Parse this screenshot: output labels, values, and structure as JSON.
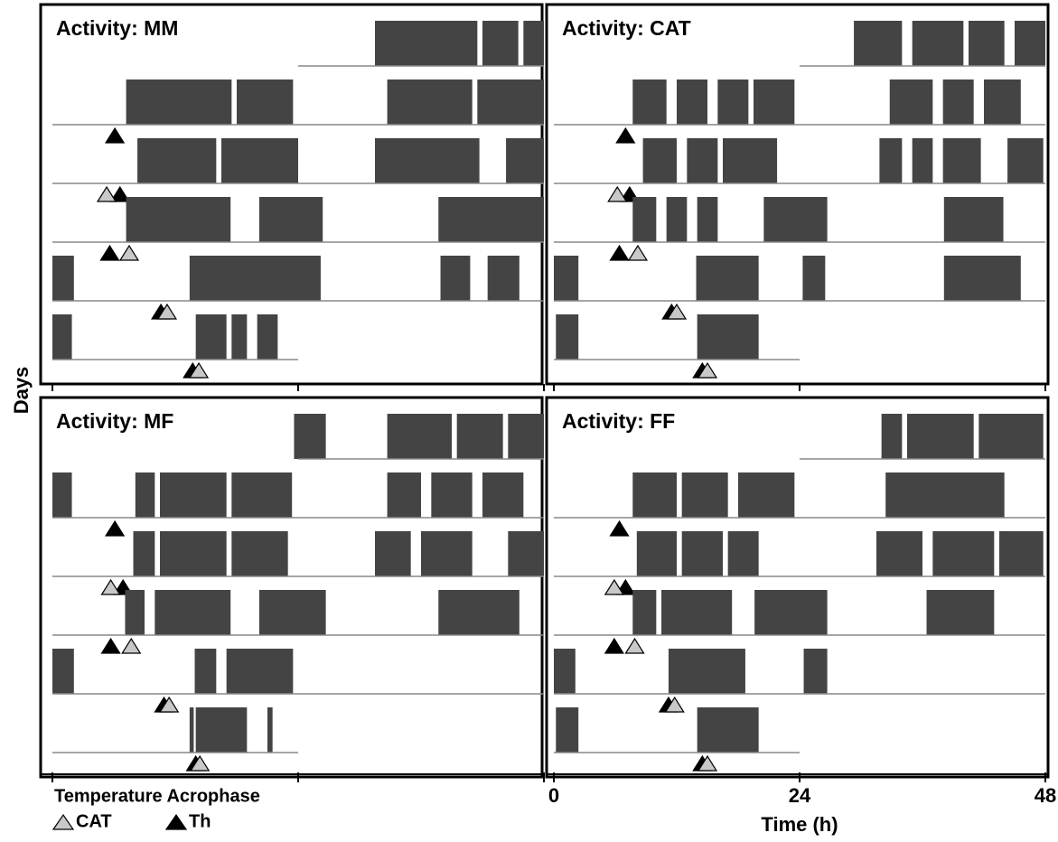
{
  "chart_data": {
    "type": "actogram",
    "x_label": "Time (h)",
    "y_label": "Days",
    "xlim": [
      0,
      48
    ],
    "xticks": [
      0,
      24,
      48
    ],
    "bar_color": "#444444",
    "legend": {
      "title": "Temperature Acrophase",
      "entries": [
        {
          "name": "CAT",
          "color": "#c8c8c8"
        },
        {
          "name": "Th",
          "color": "#000000"
        }
      ]
    },
    "panels": [
      {
        "title": "Activity: MM",
        "days": [
          {
            "span": [
              24,
              48
            ],
            "bouts": [
              [
                31.5,
                41.5
              ],
              [
                42,
                45.5
              ],
              [
                46,
                48
              ]
            ]
          },
          {
            "span": [
              0,
              48
            ],
            "bouts": [
              [
                7.2,
                17.5
              ],
              [
                18,
                23.5
              ],
              [
                32.7,
                41
              ],
              [
                41.5,
                48
              ]
            ],
            "acrophase": {
              "Th": 6.1
            }
          },
          {
            "span": [
              0,
              48
            ],
            "bouts": [
              [
                8.3,
                16
              ],
              [
                16.5,
                24
              ],
              [
                31.5,
                41.7
              ],
              [
                44.3,
                48
              ]
            ],
            "acrophase": {
              "CAT": 5.3,
              "Th": 6.6
            }
          },
          {
            "span": [
              0,
              48
            ],
            "bouts": [
              [
                7.2,
                17.4
              ],
              [
                20.2,
                26.4
              ],
              [
                37.7,
                48
              ]
            ],
            "acrophase": {
              "CAT": 7.5,
              "Th": 5.6
            }
          },
          {
            "span": [
              0,
              48
            ],
            "bouts": [
              [
                0,
                2.1
              ],
              [
                13.4,
                26.2
              ],
              [
                37.9,
                40.8
              ],
              [
                42.5,
                45.6
              ]
            ],
            "acrophase": {
              "CAT": 11.2,
              "Th": 10.6
            }
          },
          {
            "span": [
              0,
              24
            ],
            "bouts": [
              [
                0,
                1.9
              ],
              [
                14,
                17
              ],
              [
                17.5,
                19
              ],
              [
                20,
                22
              ]
            ],
            "acrophase": {
              "CAT": 14.3,
              "Th": 13.7
            }
          }
        ]
      },
      {
        "title": "Activity: CAT",
        "days": [
          {
            "span": [
              24,
              48
            ],
            "bouts": [
              [
                29.3,
                34
              ],
              [
                35,
                40
              ],
              [
                40.5,
                44
              ],
              [
                45,
                48
              ]
            ]
          },
          {
            "span": [
              0,
              48
            ],
            "bouts": [
              [
                7.7,
                11
              ],
              [
                12,
                15
              ],
              [
                16,
                19
              ],
              [
                19.5,
                23.5
              ],
              [
                32.8,
                37
              ],
              [
                38,
                41
              ],
              [
                42,
                45.6
              ]
            ],
            "acrophase": {
              "Th": 7.0
            }
          },
          {
            "span": [
              0,
              48
            ],
            "bouts": [
              [
                8.7,
                12
              ],
              [
                13,
                16
              ],
              [
                16.5,
                21.8
              ],
              [
                31.8,
                34
              ],
              [
                35,
                37
              ],
              [
                38,
                41.7
              ],
              [
                44.3,
                47.8
              ]
            ],
            "acrophase": {
              "CAT": 6.2,
              "Th": 7.4
            }
          },
          {
            "span": [
              0,
              48
            ],
            "bouts": [
              [
                7.7,
                10
              ],
              [
                11,
                13
              ],
              [
                14,
                16
              ],
              [
                20.5,
                26.7
              ],
              [
                38.1,
                43.9
              ]
            ],
            "acrophase": {
              "CAT": 8.2,
              "Th": 6.4
            }
          },
          {
            "span": [
              0,
              48
            ],
            "bouts": [
              [
                0,
                2.4
              ],
              [
                13.9,
                20
              ],
              [
                24.3,
                26.5
              ],
              [
                38.1,
                45.6
              ]
            ],
            "acrophase": {
              "CAT": 12,
              "Th": 11.5
            }
          },
          {
            "span": [
              0,
              24
            ],
            "bouts": [
              [
                0.2,
                2.4
              ],
              [
                14,
                20
              ]
            ],
            "acrophase": {
              "CAT": 15,
              "Th": 14.5
            }
          }
        ]
      },
      {
        "title": "Activity: MF",
        "days": [
          {
            "span": [
              24,
              48
            ],
            "bouts": [
              [
                23.6,
                26.7
              ],
              [
                32.7,
                39
              ],
              [
                39.5,
                44
              ],
              [
                44.5,
                48
              ]
            ]
          },
          {
            "span": [
              0,
              48
            ],
            "bouts": [
              [
                0,
                1.9
              ],
              [
                8.1,
                10
              ],
              [
                10.5,
                17
              ],
              [
                17.5,
                23.4
              ],
              [
                32.7,
                36
              ],
              [
                37,
                41
              ],
              [
                42,
                46
              ]
            ],
            "acrophase": {
              "Th": 6.1
            }
          },
          {
            "span": [
              0,
              48
            ],
            "bouts": [
              [
                7.9,
                10
              ],
              [
                10.5,
                17
              ],
              [
                17.5,
                23
              ],
              [
                31.5,
                35
              ],
              [
                36,
                41
              ],
              [
                44.5,
                48
              ]
            ],
            "acrophase": {
              "CAT": 5.7,
              "Th": 6.9
            }
          },
          {
            "span": [
              0,
              48
            ],
            "bouts": [
              [
                7.1,
                9
              ],
              [
                10,
                17.4
              ],
              [
                20.2,
                26.7
              ],
              [
                37.7,
                45.6
              ]
            ],
            "acrophase": {
              "CAT": 7.7,
              "Th": 5.7
            }
          },
          {
            "span": [
              0,
              48
            ],
            "bouts": [
              [
                0,
                2.1
              ],
              [
                13.9,
                16
              ],
              [
                17,
                23.5
              ]
            ],
            "acrophase": {
              "CAT": 11.4,
              "Th": 10.9
            }
          },
          {
            "span": [
              0,
              24
            ],
            "bouts": [
              [
                13.4,
                13.8
              ],
              [
                14,
                19
              ],
              [
                21,
                21.5
              ]
            ],
            "acrophase": {
              "CAT": 14.4,
              "Th": 14
            }
          }
        ]
      },
      {
        "title": "Activity: FF",
        "days": [
          {
            "span": [
              24,
              48
            ],
            "bouts": [
              [
                32,
                34
              ],
              [
                34.5,
                41
              ],
              [
                41.5,
                47.8
              ]
            ]
          },
          {
            "span": [
              0,
              48
            ],
            "bouts": [
              [
                7.7,
                12
              ],
              [
                12.5,
                17
              ],
              [
                18,
                23.5
              ],
              [
                32.4,
                44
              ]
            ],
            "acrophase": {
              "Th": 6.4
            }
          },
          {
            "span": [
              0,
              48
            ],
            "bouts": [
              [
                8.1,
                12
              ],
              [
                12.5,
                16.5
              ],
              [
                17,
                20
              ],
              [
                31.5,
                36
              ],
              [
                37,
                43
              ],
              [
                43.5,
                47.8
              ]
            ],
            "acrophase": {
              "CAT": 5.9,
              "Th": 7
            }
          },
          {
            "span": [
              0,
              48
            ],
            "bouts": [
              [
                7.7,
                10
              ],
              [
                10.5,
                17.4
              ],
              [
                19.6,
                26.7
              ],
              [
                36.4,
                43
              ]
            ],
            "acrophase": {
              "CAT": 7.9,
              "Th": 5.9
            }
          },
          {
            "span": [
              0,
              48
            ],
            "bouts": [
              [
                0,
                2.1
              ],
              [
                11.2,
                18.7
              ],
              [
                24.4,
                26.7
              ]
            ],
            "acrophase": {
              "CAT": 11.8,
              "Th": 11.2
            }
          },
          {
            "span": [
              0,
              24
            ],
            "bouts": [
              [
                0.2,
                2.4
              ],
              [
                14,
                20
              ]
            ],
            "acrophase": {
              "CAT": 15,
              "Th": 14.5
            }
          }
        ]
      }
    ]
  }
}
